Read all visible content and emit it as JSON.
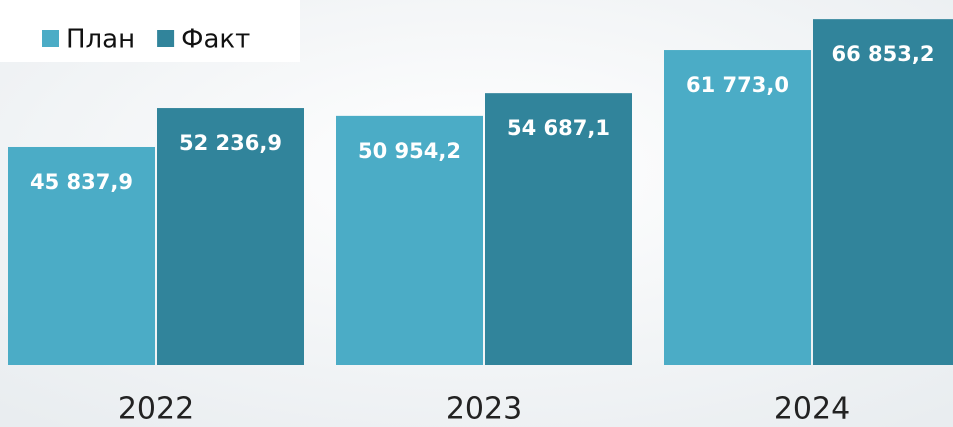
{
  "chart_data": {
    "type": "bar",
    "categories": [
      "2022",
      "2023",
      "2024"
    ],
    "series": [
      {
        "name": "План",
        "color": "#4bacc6",
        "values": [
          45837.9,
          50954.2,
          61773.0
        ],
        "value_labels": [
          "45 837,9",
          "50 954,2",
          "61 773,0"
        ]
      },
      {
        "name": "Факт",
        "color": "#31849b",
        "values": [
          52236.9,
          54687.1,
          66853.2
        ],
        "value_labels": [
          "52 236,9",
          "54 687,1",
          "66 853,2"
        ]
      }
    ],
    "ylim": [
      10000,
      70000
    ],
    "legend": "top-left"
  }
}
